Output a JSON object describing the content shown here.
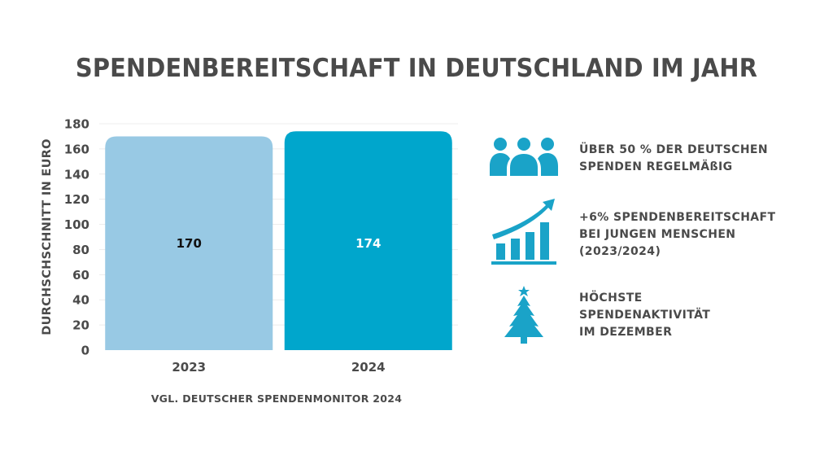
{
  "title": "SPENDENBEREITSCHAFT IN DEUTSCHLAND IM JAHR",
  "colors": {
    "text": "#4a4a4a",
    "bar_2023": "#98c9e4",
    "bar_2024": "#00a6cc",
    "icon": "#1aa3c8",
    "grid": "#ececec"
  },
  "chart_data": {
    "type": "bar",
    "title": "SPENDENBEREITSCHAFT IN DEUTSCHLAND IM JAHR",
    "xlabel": "",
    "ylabel": "DURCHSCHSCHNITT IN EURO",
    "categories": [
      "2023",
      "2024"
    ],
    "values": [
      170,
      174
    ],
    "value_labels": [
      "170",
      "174"
    ],
    "bar_colors": [
      "#98c9e4",
      "#00a6cc"
    ],
    "value_label_colors": [
      "#111111",
      "#ffffff"
    ],
    "ylim": [
      0,
      180
    ],
    "yticks": [
      0,
      20,
      40,
      60,
      80,
      100,
      120,
      140,
      160,
      180
    ],
    "ytick_labels": [
      "0",
      "20",
      "40",
      "60",
      "80",
      "100",
      "120",
      "140",
      "160",
      "180"
    ],
    "grid": true,
    "legend": "none"
  },
  "source": "VGL. DEUTSCHER SPENDENMONITOR 2024",
  "facts": [
    {
      "icon": "people-group-icon",
      "lines": [
        "ÜBER 50 % DER DEUTSCHEN",
        "SPENDEN REGELMÄßIG"
      ]
    },
    {
      "icon": "growth-chart-icon",
      "lines": [
        "+6% SPENDENBEREITSCHAFT",
        "BEI JUNGEN MENSCHEN",
        "(2023/2024)"
      ]
    },
    {
      "icon": "christmas-tree-icon",
      "lines": [
        "HÖCHSTE",
        "SPENDENAKTIVITÄT",
        "IM DEZEMBER"
      ]
    }
  ]
}
